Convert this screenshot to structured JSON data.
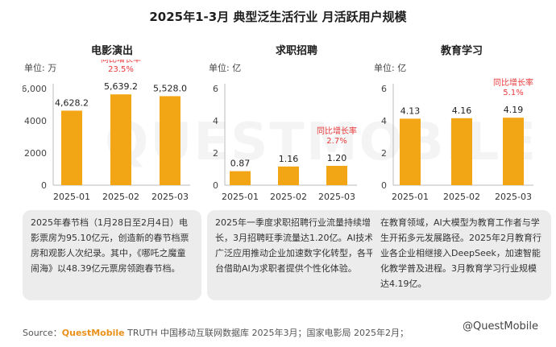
{
  "title": "2025年1-3月 典型泛生活行业 月活跃用户规模",
  "background_watermark": "QUESTMOBILE",
  "colors": {
    "bar": "#f2a515",
    "growth_label": "#e8393b",
    "note_bg": "#ececec",
    "brand": "#e9901a"
  },
  "panels": [
    {
      "title": "电影演出",
      "unit_prefix": "单位:",
      "unit": "万",
      "note": "2025年春节档（1月28日至2月4日）电影票房为95.10亿元，创造新的春节档票房和观影人次纪录。其中，《哪吒之魔童闹海》以48.39亿元票房领跑春节档。"
    },
    {
      "title": "求职招聘",
      "unit_prefix": "单位:",
      "unit": "亿",
      "note": "2025年一季度求职招聘行业流量持续增长，3月招聘旺季流量达1.20亿。AI技术广泛应用推动企业加速数字化转型，各平台借助AI为求职者提供个性化体验。"
    },
    {
      "title": "教育学习",
      "unit_prefix": "单位:",
      "unit": "亿",
      "note": "在教育领域，AI大模型为教育工作者与学生开拓多元发展路径。2025年2月教育行业各企业相继接入DeepSeek，加速智能化教学普及进程。3月教育学习行业规模达4.19亿。"
    }
  ],
  "chart_data": [
    {
      "type": "bar",
      "title": "电影演出",
      "categories": [
        "2025-01",
        "2025-02",
        "2025-03"
      ],
      "values": [
        4628.2,
        5639.2,
        5528.0
      ],
      "value_labels": [
        "4,628.2",
        "5,639.2",
        "5,528.0"
      ],
      "ylim": [
        0,
        6000
      ],
      "yticks": [
        0,
        2000,
        4000,
        6000
      ],
      "ytick_labels": [
        "0",
        "2000",
        "4000",
        "6,000"
      ],
      "ylabel": "单位: 万",
      "grid": false,
      "annotation": {
        "category": "2025-02",
        "label": "同比增长率",
        "value": "23.5%"
      }
    },
    {
      "type": "bar",
      "title": "求职招聘",
      "categories": [
        "2025-01",
        "2025-02",
        "2025-03"
      ],
      "values": [
        0.87,
        1.16,
        1.2
      ],
      "value_labels": [
        "0.87",
        "1.16",
        "1.20"
      ],
      "ylim": [
        0,
        6
      ],
      "yticks": [
        0,
        2,
        4,
        6
      ],
      "ytick_labels": [
        "0",
        "2",
        "4",
        "6"
      ],
      "ylabel": "单位: 亿",
      "grid": false,
      "annotation": {
        "category": "2025-03",
        "label": "同比增长率",
        "value": "2.7%"
      }
    },
    {
      "type": "bar",
      "title": "教育学习",
      "categories": [
        "2025-01",
        "2025-02",
        "2025-03"
      ],
      "values": [
        4.13,
        4.16,
        4.19
      ],
      "value_labels": [
        "4.13",
        "4.16",
        "4.19"
      ],
      "ylim": [
        0,
        6
      ],
      "yticks": [
        0,
        2,
        4,
        6
      ],
      "ytick_labels": [
        "0",
        "2",
        "4",
        "6"
      ],
      "ylabel": "单位: 亿",
      "grid": false,
      "annotation": {
        "category": "2025-03",
        "label": "同比增长率",
        "value": "5.1%"
      }
    }
  ],
  "source": {
    "prefix": "Source：",
    "brand": "QuestMobile",
    "text": "TRUTH 中国移动互联网数据库 2025年3月；国家电影局 2025年2月；",
    "watermark": "@QuestMobile"
  }
}
